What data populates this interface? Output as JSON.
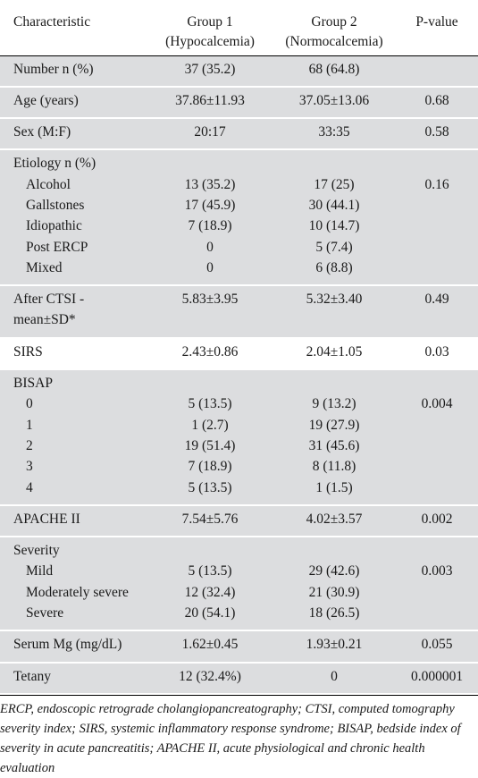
{
  "header": {
    "characteristic": "Characteristic",
    "group1_line1": "Group 1",
    "group1_line2": "(Hypocalcemia)",
    "group2_line1": "Group 2",
    "group2_line2": "(Normocalcemia)",
    "pvalue": "P-value"
  },
  "rows": {
    "number": {
      "label": "Number n (%)",
      "g1": "37 (35.2)",
      "g2": "68 (64.8)",
      "p": ""
    },
    "age": {
      "label": "Age (years)",
      "g1": "37.86±11.93",
      "g2": "37.05±13.06",
      "p": "0.68"
    },
    "sex": {
      "label": "Sex (M:F)",
      "g1": "20:17",
      "g2": "33:35",
      "p": "0.58"
    },
    "etiology": {
      "label": "Etiology n (%)",
      "p": "0.16",
      "items": [
        {
          "label": "Alcohol",
          "g1": "13 (35.2)",
          "g2": "17 (25)"
        },
        {
          "label": "Gallstones",
          "g1": "17 (45.9)",
          "g2": "30 (44.1)"
        },
        {
          "label": "Idiopathic",
          "g1": "7 (18.9)",
          "g2": "10 (14.7)"
        },
        {
          "label": "Post ERCP",
          "g1": "0",
          "g2": "5 (7.4)"
        },
        {
          "label": "Mixed",
          "g1": "0",
          "g2": "6 (8.8)"
        }
      ]
    },
    "ctsi": {
      "label_line1": "After CTSI -",
      "label_line2": "mean±SD*",
      "g1": "5.83±3.95",
      "g2": "5.32±3.40",
      "p": "0.49"
    },
    "sirs": {
      "label": "SIRS",
      "g1": "2.43±0.86",
      "g2": "2.04±1.05",
      "p": "0.03"
    },
    "bisap": {
      "label": "BISAP",
      "p": "0.004",
      "items": [
        {
          "label": "0",
          "g1": "5 (13.5)",
          "g2": "9 (13.2)"
        },
        {
          "label": "1",
          "g1": "1 (2.7)",
          "g2": "19 (27.9)"
        },
        {
          "label": "2",
          "g1": "19 (51.4)",
          "g2": "31 (45.6)"
        },
        {
          "label": "3",
          "g1": "7 (18.9)",
          "g2": "8 (11.8)"
        },
        {
          "label": "4",
          "g1": "5 (13.5)",
          "g2": "1 (1.5)"
        }
      ]
    },
    "apache": {
      "label": "APACHE II",
      "g1": "7.54±5.76",
      "g2": "4.02±3.57",
      "p": "0.002"
    },
    "severity": {
      "label": "Severity",
      "p": "0.003",
      "items": [
        {
          "label": "Mild",
          "g1": "5 (13.5)",
          "g2": "29 (42.6)"
        },
        {
          "label": "Moderately severe",
          "g1": "12 (32.4)",
          "g2": "21 (30.9)"
        },
        {
          "label": "Severe",
          "g1": "20 (54.1)",
          "g2": "18 (26.5)"
        }
      ]
    },
    "mg": {
      "label": "Serum Mg (mg/dL)",
      "g1": "1.62±0.45",
      "g2": "1.93±0.21",
      "p": "0.055"
    },
    "tetany": {
      "label": "Tetany",
      "g1": "12 (32.4%)",
      "g2": "0",
      "p": "0.000001"
    }
  },
  "footnote": "ERCP, endoscopic retrograde cholangiopancreatography; CTSI, computed tomography severity index; SIRS,  systemic inflammatory response syndrome; BISAP, bedside index of severity in acute pancreatitis; APACHE II, acute physiological and chronic health evaluation",
  "colors": {
    "row_shade": "#dcdddf",
    "rule": "#000000"
  }
}
